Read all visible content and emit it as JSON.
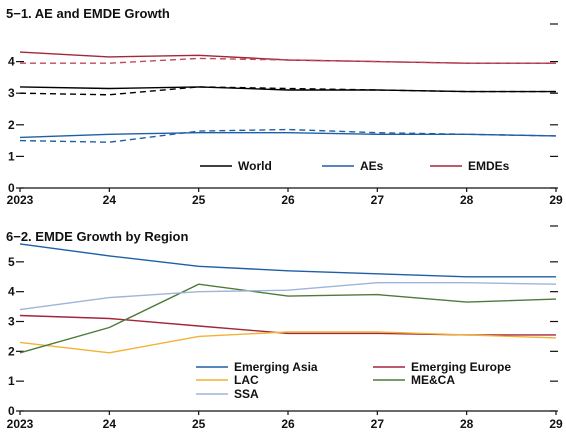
{
  "chart_data": [
    {
      "type": "line",
      "title": "5−1. AE and EMDE Growth",
      "x": [
        2023,
        2024,
        2025,
        2026,
        2027,
        2028,
        2029
      ],
      "x_tick_labels": [
        "2023",
        "24",
        "25",
        "26",
        "27",
        "28",
        "29"
      ],
      "ylim": [
        0,
        5
      ],
      "y_ticks": [
        0,
        1,
        2,
        3,
        4
      ],
      "series": [
        {
          "name": "World",
          "color": "#000000",
          "style": "solid",
          "values": [
            3.2,
            3.15,
            3.2,
            3.1,
            3.1,
            3.05,
            3.05
          ]
        },
        {
          "name": "",
          "color": "#000000",
          "style": "dashed",
          "values": [
            3.0,
            2.95,
            3.2,
            3.15,
            3.1,
            3.05,
            3.05
          ]
        },
        {
          "name": "AEs",
          "color": "#1f5fa6",
          "style": "solid",
          "values": [
            1.6,
            1.7,
            1.75,
            1.75,
            1.7,
            1.7,
            1.65
          ]
        },
        {
          "name": "",
          "color": "#1f5fa6",
          "style": "dashed",
          "values": [
            1.5,
            1.45,
            1.8,
            1.85,
            1.75,
            1.7,
            1.65
          ]
        },
        {
          "name": "EMDEs",
          "color": "#a3263a",
          "style": "solid",
          "values": [
            4.3,
            4.15,
            4.2,
            4.05,
            4.0,
            3.95,
            3.95
          ]
        },
        {
          "name": "",
          "color": "#c04a5a",
          "style": "dashed",
          "values": [
            3.95,
            3.95,
            4.1,
            4.05,
            4.0,
            3.95,
            3.95
          ]
        }
      ],
      "legend": [
        "World",
        "AEs",
        "EMDEs"
      ],
      "legend_placement": "bottom"
    },
    {
      "type": "line",
      "title": "6−2. EMDE Growth by Region",
      "x": [
        2023,
        2024,
        2025,
        2026,
        2027,
        2028,
        2029
      ],
      "x_tick_labels": [
        "2023",
        "24",
        "25",
        "26",
        "27",
        "28",
        "29"
      ],
      "ylim": [
        0,
        6
      ],
      "y_ticks": [
        0,
        1,
        2,
        3,
        4,
        5
      ],
      "series": [
        {
          "name": "Emerging Asia",
          "color": "#1f5fa6",
          "values": [
            5.6,
            5.2,
            4.85,
            4.7,
            4.6,
            4.5,
            4.5
          ]
        },
        {
          "name": "Emerging Europe",
          "color": "#a3263a",
          "values": [
            3.2,
            3.1,
            2.85,
            2.6,
            2.6,
            2.55,
            2.55
          ]
        },
        {
          "name": "LAC",
          "color": "#f2b233",
          "values": [
            2.3,
            1.95,
            2.5,
            2.65,
            2.65,
            2.55,
            2.45
          ]
        },
        {
          "name": "ME&CA",
          "color": "#4e7a3a",
          "values": [
            1.95,
            2.8,
            4.25,
            3.85,
            3.9,
            3.65,
            3.75
          ]
        },
        {
          "name": "SSA",
          "color": "#9fb4d8",
          "values": [
            3.4,
            3.8,
            4.0,
            4.05,
            4.3,
            4.3,
            4.25
          ]
        }
      ],
      "legend": [
        "Emerging Asia",
        "Emerging Europe",
        "LAC",
        "ME&CA",
        "SSA"
      ],
      "legend_placement": "bottom"
    }
  ]
}
